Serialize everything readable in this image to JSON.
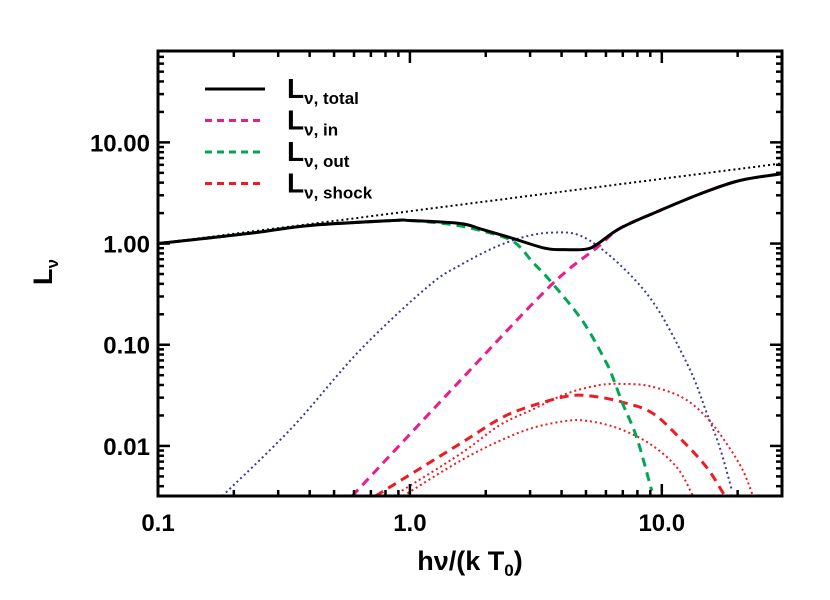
{
  "chart_data": {
    "type": "line",
    "title": "",
    "xlabel": {
      "main": "hν/(k T",
      "sub": "0",
      "close": ")"
    },
    "ylabel": {
      "main": "L",
      "sub": "ν"
    },
    "xscale": "log",
    "yscale": "log",
    "xlim": [
      0.1,
      30
    ],
    "ylim": [
      0.0032,
      80
    ],
    "x_ticks": [
      {
        "value": 0.1,
        "label": "0.1"
      },
      {
        "value": 1,
        "label": "1.0"
      },
      {
        "value": 10,
        "label": "10.0"
      }
    ],
    "y_ticks": [
      {
        "value": 0.01,
        "label": "0.01"
      },
      {
        "value": 0.1,
        "label": "0.10"
      },
      {
        "value": 1,
        "label": "1.00"
      },
      {
        "value": 10,
        "label": "10.00"
      }
    ],
    "grid": false,
    "legend_placement": "top-left",
    "series": [
      {
        "name": "L",
        "sub": "ν, total",
        "legend": true,
        "color": "#000000",
        "style": "solid",
        "x": [
          0.1,
          0.23,
          0.4,
          0.86,
          1.0,
          1.58,
          1.9,
          2.49,
          3.43,
          4.12,
          5.0,
          5.52,
          6.81,
          9.29,
          14.2,
          20.4,
          30
        ],
        "y": [
          1.0,
          1.26,
          1.51,
          1.69,
          1.69,
          1.58,
          1.4,
          1.15,
          0.9,
          0.87,
          0.88,
          0.98,
          1.41,
          2.0,
          3.1,
          4.2,
          4.9
        ]
      },
      {
        "name": "L",
        "sub": "ν, in",
        "legend": true,
        "color": "#ec1c8c",
        "style": "dashed",
        "x": [
          0.59,
          1.58,
          3.6,
          5.52,
          6.81,
          9.29,
          14.2,
          20.4,
          30
        ],
        "y": [
          0.0032,
          0.044,
          0.38,
          0.91,
          1.41,
          2.0,
          3.1,
          4.2,
          4.9
        ]
      },
      {
        "name": "L",
        "sub": "ν, out",
        "legend": true,
        "color": "#00a651",
        "style": "dashed",
        "x": [
          0.1,
          0.23,
          0.4,
          0.86,
          1.0,
          1.44,
          1.9,
          2.57,
          3.08,
          3.6,
          4.86,
          6.05,
          6.4,
          7.0,
          7.96,
          9.12
        ],
        "y": [
          1.0,
          1.26,
          1.51,
          1.69,
          1.69,
          1.55,
          1.35,
          1.05,
          0.65,
          0.43,
          0.17,
          0.065,
          0.047,
          0.026,
          0.012,
          0.0036
        ]
      },
      {
        "name": "L",
        "sub": "ν, shock",
        "legend": true,
        "color": "#ed1c24",
        "style": "dashed",
        "x": [
          0.73,
          1.58,
          2.27,
          2.91,
          4.2,
          5.32,
          7.0,
          9.21,
          12.1,
          15.1,
          17.3,
          17.8
        ],
        "y": [
          0.0032,
          0.0105,
          0.0185,
          0.024,
          0.031,
          0.031,
          0.027,
          0.021,
          0.0112,
          0.0061,
          0.0036,
          0.0032
        ]
      },
      {
        "legend": false,
        "color": "#ed1c24",
        "style": "dotted",
        "x": [
          0.86,
          1.58,
          2.27,
          3.08,
          4.2,
          5.68,
          7.0,
          8.96,
          12.1,
          15.1,
          18.1,
          21.0,
          23.0
        ],
        "y": [
          0.0032,
          0.0083,
          0.016,
          0.023,
          0.033,
          0.04,
          0.041,
          0.039,
          0.03,
          0.019,
          0.0105,
          0.0057,
          0.0032
        ]
      },
      {
        "legend": false,
        "color": "#ed1c24",
        "style": "dotted",
        "x": [
          0.94,
          1.58,
          2.27,
          3.08,
          4.2,
          5.04,
          6.63,
          8.96,
          11.5,
          13.3
        ],
        "y": [
          0.0032,
          0.0071,
          0.0112,
          0.0151,
          0.0177,
          0.0177,
          0.0151,
          0.0105,
          0.0061,
          0.0032
        ]
      },
      {
        "legend": false,
        "color": "#3b3b9c",
        "style": "dotted",
        "x": [
          0.18,
          0.34,
          0.63,
          1.17,
          1.58,
          2.41,
          3.6,
          5.18,
          8.72,
          12.6,
          15.1,
          17.0,
          19.0
        ],
        "y": [
          0.0032,
          0.0151,
          0.087,
          0.37,
          0.61,
          1.02,
          1.28,
          1.07,
          0.32,
          0.065,
          0.021,
          0.0096,
          0.0036
        ]
      },
      {
        "legend": false,
        "color": "#000000",
        "style": "dotted",
        "x": [
          0.1,
          30
        ],
        "y": [
          1.0,
          6.2
        ]
      }
    ]
  }
}
